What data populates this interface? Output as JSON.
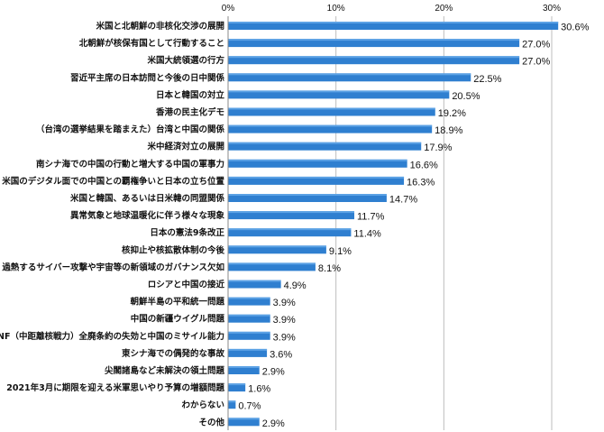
{
  "chart_data": {
    "type": "bar",
    "orientation": "horizontal",
    "title": "",
    "xlabel": "",
    "ylabel": "",
    "xlim": [
      0,
      30
    ],
    "ticks": [
      0,
      10,
      20,
      30
    ],
    "tick_labels": [
      "0%",
      "10%",
      "20%",
      "30%"
    ],
    "grid": true,
    "bar_color": "#2f7fd0",
    "categories": [
      "米国と北朝鮮の非核化交渉の展開",
      "北朝鮮が核保有国として行動すること",
      "米国大統領選の行方",
      "習近平主席の日本訪問と今後の日中関係",
      "日本と韓国の対立",
      "香港の民主化デモ",
      "（台湾の選挙結果を踏まえた）台湾と中国の関係",
      "米中経済対立の展開",
      "南シナ海での中国の行動と増大する中国の軍事力",
      "米国のデジタル面での中国との覇権争いと日本の立ち位置",
      "米国と韓国、あるいは日米韓の同盟関係",
      "異常気象と地球温暖化に伴う様々な現象",
      "日本の憲法9条改正",
      "核抑止や核拡散体制の今後",
      "過熱するサイバー攻撃や宇宙等の新領域のガバナンス欠如",
      "ロシアと中国の接近",
      "朝鮮半島の平和統一問題",
      "中国の新疆ウイグル問題",
      "INF（中距離核戦力）全廃条約の失効と中国のミサイル能力",
      "東シナ海での偶発的な事故",
      "尖閣諸島など未解決の領土問題",
      "2021年3月に期限を迎える米軍思いやり予算の増額問題",
      "わからない",
      "その他"
    ],
    "values": [
      30.6,
      27.0,
      27.0,
      22.5,
      20.5,
      19.2,
      18.9,
      17.9,
      16.6,
      16.3,
      14.7,
      11.7,
      11.4,
      9.1,
      8.1,
      4.9,
      3.9,
      3.9,
      3.9,
      3.6,
      2.9,
      1.6,
      0.7,
      2.9
    ],
    "value_labels": [
      "30.6%",
      "27.0%",
      "27.0%",
      "22.5%",
      "20.5%",
      "19.2%",
      "18.9%",
      "17.9%",
      "16.6%",
      "16.3%",
      "14.7%",
      "11.7%",
      "11.4%",
      "9.1%",
      "8.1%",
      "4.9%",
      "3.9%",
      "3.9%",
      "3.9%",
      "3.6%",
      "2.9%",
      "1.6%",
      "0.7%",
      "2.9%"
    ]
  }
}
